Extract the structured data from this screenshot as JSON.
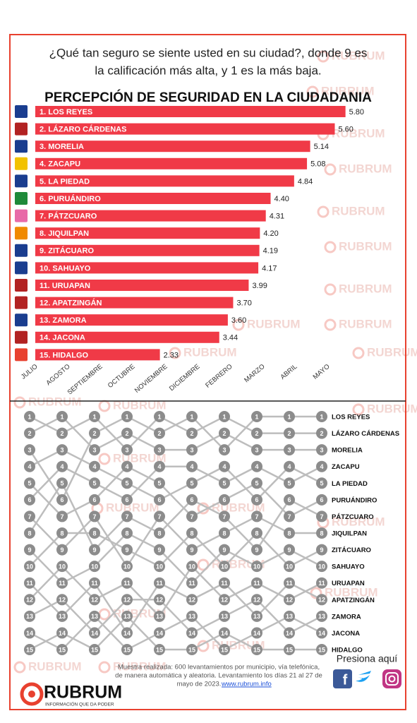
{
  "chart_data": [
    {
      "type": "bar",
      "subtitle": [
        "¿Qué tan seguro se siente usted en su ciudad?, donde 9 es",
        "la calificación más alta, y  1 es la más baja."
      ],
      "title": "PERCEPCIÓN DE SEGURIDAD EN LA CIUDADANIA",
      "categories": [
        "1. LOS REYES",
        "2. LÁZARO CÁRDENAS",
        "3. MORELIA",
        "4. ZACAPU",
        "5. LA PIEDAD",
        "6. PURUÁNDIRO",
        "7. PÁTZCUARO",
        "8. JIQUILPAN",
        "9. ZITÁCUARO",
        "10. SAHUAYO",
        "11. URUAPAN",
        "12. APATZINGÁN",
        "13. ZAMORA",
        "14. JACONA",
        "15. HIDALGO"
      ],
      "values": [
        5.8,
        5.6,
        5.14,
        5.08,
        4.84,
        4.4,
        4.31,
        4.2,
        4.19,
        4.17,
        3.99,
        3.7,
        3.6,
        3.44,
        2.33
      ],
      "value_labels": [
        "5.80",
        "5.60",
        "5.14",
        "5.08",
        "4.84",
        "4.40",
        "4.31",
        "4.20",
        "4.19",
        "4.17",
        "3.99",
        "3.70",
        "3.60",
        "3.44",
        "2.33"
      ],
      "color": "#f03a47"
    },
    {
      "type": "bump",
      "categories": [
        "JULIO",
        "AGOSTO",
        "SEPTIEMBRE",
        "OCTUBRE",
        "NOVIEMBRE",
        "DICIEMBRE",
        "FEBRERO",
        "MARZO",
        "ABRIL",
        "MAYO"
      ],
      "ylim": [
        15,
        1
      ],
      "line_color": "#bdbdbd",
      "marker_color": "#8c8c8c",
      "series": [
        {
          "name": "LOS REYES",
          "values": [
            3,
            6,
            2,
            1,
            2,
            1,
            3,
            1,
            1,
            1
          ]
        },
        {
          "name": "LÁZARO CÁRDENAS",
          "values": [
            1,
            2,
            1,
            3,
            1,
            2,
            1,
            2,
            2,
            2
          ]
        },
        {
          "name": "MORELIA",
          "values": [
            2,
            1,
            3,
            2,
            3,
            3,
            2,
            3,
            3,
            3
          ]
        },
        {
          "name": "ZACAPU",
          "values": [
            6,
            4,
            5,
            6,
            4,
            4,
            5,
            4,
            5,
            4
          ]
        },
        {
          "name": "LA PIEDAD",
          "values": [
            4,
            3,
            4,
            5,
            6,
            5,
            4,
            6,
            4,
            5
          ]
        },
        {
          "name": "PURUÁNDIRO",
          "values": [
            5,
            7,
            6,
            4,
            5,
            7,
            6,
            5,
            7,
            6
          ]
        },
        {
          "name": "PÁTZCUARO",
          "values": [
            8,
            5,
            9,
            7,
            8,
            6,
            7,
            9,
            6,
            7
          ]
        },
        {
          "name": "JIQUILPAN",
          "values": [
            7,
            9,
            7,
            10,
            7,
            9,
            8,
            7,
            8,
            8
          ]
        },
        {
          "name": "ZITÁCUARO",
          "values": [
            10,
            8,
            8,
            9,
            10,
            8,
            10,
            8,
            10,
            9
          ]
        },
        {
          "name": "SAHUAYO",
          "values": [
            9,
            11,
            10,
            8,
            9,
            11,
            9,
            10,
            9,
            10
          ]
        },
        {
          "name": "URUAPAN",
          "values": [
            12,
            10,
            12,
            11,
            13,
            10,
            12,
            11,
            12,
            11
          ]
        },
        {
          "name": "APATZINGÁN",
          "values": [
            11,
            13,
            11,
            14,
            11,
            12,
            11,
            13,
            11,
            12
          ]
        },
        {
          "name": "ZAMORA",
          "values": [
            13,
            12,
            14,
            12,
            12,
            14,
            13,
            12,
            14,
            13
          ]
        },
        {
          "name": "JACONA",
          "values": [
            14,
            15,
            13,
            15,
            14,
            13,
            15,
            14,
            13,
            14
          ]
        },
        {
          "name": "HIDALGO",
          "values": [
            15,
            14,
            15,
            13,
            15,
            15,
            14,
            15,
            15,
            15
          ]
        }
      ]
    }
  ],
  "footer": {
    "note_lines": [
      "Muestra realizada: 600 levantamientos por municipio, vía telefónica,",
      "de manera automática y aleatoria. Levantamiento los días 21 al 27 de",
      "mayo de 2023."
    ],
    "link": "www.rubrum.info",
    "cta": "Presiona aquí"
  },
  "logo": {
    "name": "RUBRUM",
    "tagline": "INFORMACIÓN QUE DA PODER"
  },
  "watermark": "RUBRUM"
}
